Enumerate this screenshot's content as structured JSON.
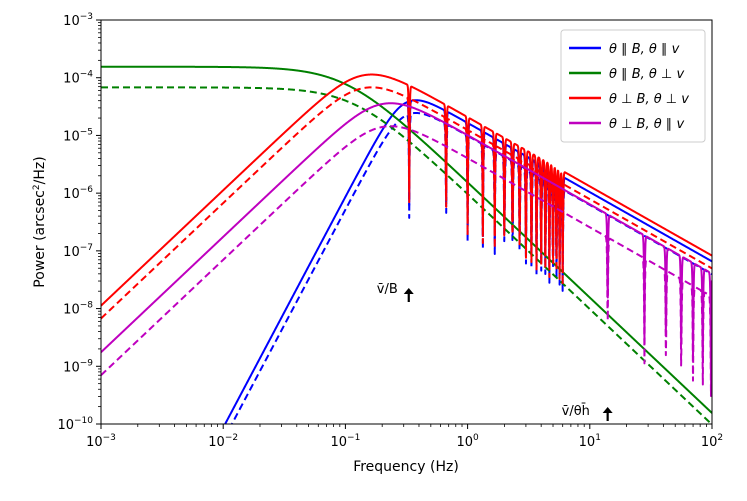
{
  "chart_data": {
    "type": "line",
    "title": "",
    "xlabel": "Frequency (Hz)",
    "ylabel_main": "Power (arcsec",
    "ylabel_sup": "2",
    "ylabel_tail": "/Hz)",
    "xscale": "log",
    "yscale": "log",
    "xlim": [
      0.001,
      100
    ],
    "ylim": [
      1e-10,
      0.001
    ],
    "x_ticks": [
      {
        "base": "10",
        "exp": "−3",
        "value": 0.001
      },
      {
        "base": "10",
        "exp": "−2",
        "value": 0.01
      },
      {
        "base": "10",
        "exp": "−1",
        "value": 0.1
      },
      {
        "base": "10",
        "exp": "0",
        "value": 1
      },
      {
        "base": "10",
        "exp": "1",
        "value": 10
      },
      {
        "base": "10",
        "exp": "2",
        "value": 100
      }
    ],
    "y_ticks": [
      {
        "base": "10",
        "exp": "−10",
        "value": 1e-10
      },
      {
        "base": "10",
        "exp": "−9",
        "value": 1e-09
      },
      {
        "base": "10",
        "exp": "−8",
        "value": 1e-08
      },
      {
        "base": "10",
        "exp": "−7",
        "value": 1e-07
      },
      {
        "base": "10",
        "exp": "−6",
        "value": 1e-06
      },
      {
        "base": "10",
        "exp": "−5",
        "value": 1e-05
      },
      {
        "base": "10",
        "exp": "−4",
        "value": 0.0001
      },
      {
        "base": "10",
        "exp": "−3",
        "value": 0.001
      }
    ],
    "legend_position": "top-right",
    "series": [
      {
        "id": "blue",
        "name": "θ ∥ B, θ ∥ v",
        "color": "#0000ff",
        "model": "sinc",
        "lowSlope": 4,
        "fc": 0.3,
        "peak": 3.5e-05,
        "highSlope": -1.2,
        "zeros": [
          0.333,
          0.667,
          1.0,
          1.333,
          1.667,
          2.0,
          2.333,
          2.667,
          3.0,
          3.333,
          3.667,
          4.0,
          4.333,
          4.667,
          5.0,
          5.333,
          5.667,
          6.0
        ],
        "dashedScale": 0.6
      },
      {
        "id": "green",
        "name": "θ ∥ B, θ ⊥ v",
        "color": "#008000",
        "model": "lowpass",
        "plateau": 0.000155,
        "fc": 0.1,
        "highSlope": -2,
        "dashedPlateau": 6.8e-05,
        "dashedFc": 0.12
      },
      {
        "id": "red",
        "name": "θ ⊥ B, θ ⊥ v",
        "color": "#ff0000",
        "model": "sinc",
        "lowSlope": 2,
        "fc": 0.14,
        "peak": 0.00011,
        "highSlope": -1.2,
        "zeros": [
          0.333,
          0.667,
          1.0,
          1.333,
          1.667,
          2.0,
          2.333,
          2.667,
          3.0,
          3.333,
          3.667,
          4.0,
          4.333,
          4.667,
          5.0,
          5.333,
          5.667,
          6.0
        ],
        "dashedScale": 0.6
      },
      {
        "id": "magenta",
        "name": "θ ⊥ B, θ ∥ v",
        "color": "#bf00bf",
        "model": "sinc",
        "lowSlope": 2,
        "fc": 0.2,
        "peak": 3.5e-05,
        "highSlope": -1.2,
        "zeros": [
          14,
          28,
          42,
          56,
          70,
          84,
          98
        ],
        "dashedScale": 0.4
      }
    ],
    "annotations": [
      {
        "text": "v̄/B",
        "x": 0.33
      },
      {
        "text": "v̄/θh̄",
        "x": 14
      }
    ]
  }
}
